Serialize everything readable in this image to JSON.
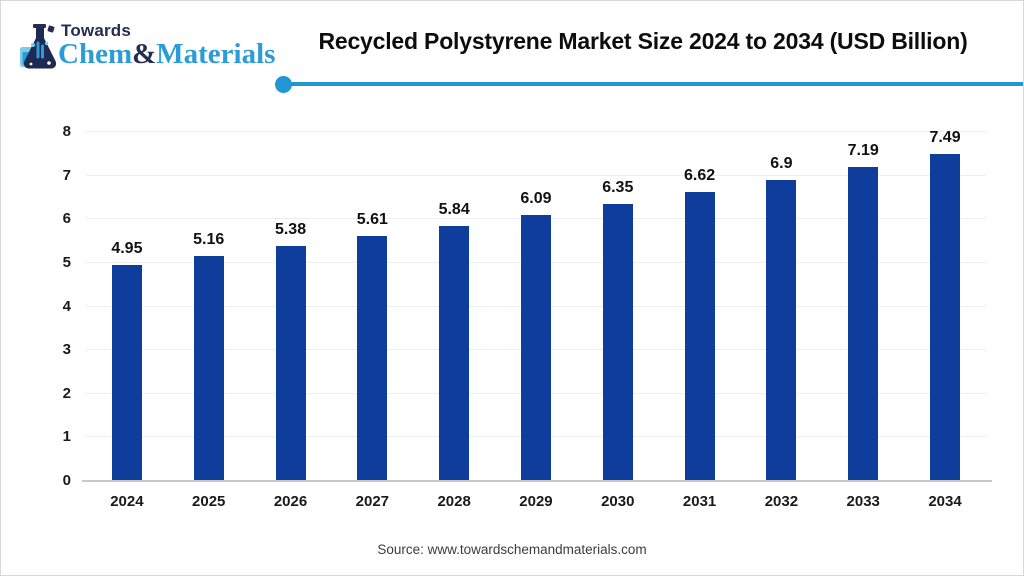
{
  "header": {
    "logo": {
      "icon": "flask-icon",
      "top_text": "Towards",
      "bottom_text_part1": "Chem",
      "bottom_text_amp": "&",
      "bottom_text_part2": "Materials"
    },
    "title": "Recycled Polystyrene Market Size 2024 to 2034 (USD Billion)"
  },
  "chart_data": {
    "type": "bar",
    "title": "Recycled Polystyrene Market Size 2024 to 2034 (USD Billion)",
    "categories": [
      "2024",
      "2025",
      "2026",
      "2027",
      "2028",
      "2029",
      "2030",
      "2031",
      "2032",
      "2033",
      "2034"
    ],
    "values": [
      4.95,
      5.16,
      5.38,
      5.61,
      5.84,
      6.09,
      6.35,
      6.62,
      6.9,
      7.19,
      7.49
    ],
    "value_labels": [
      "4.95",
      "5.16",
      "5.38",
      "5.61",
      "5.84",
      "6.09",
      "6.35",
      "6.62",
      "6.9",
      "7.19",
      "7.49"
    ],
    "xlabel": "",
    "ylabel": "",
    "ylim": [
      0,
      8
    ],
    "y_ticks": [
      0,
      1,
      2,
      3,
      4,
      5,
      6,
      7,
      8
    ],
    "grid": "horizontal",
    "legend": "none",
    "bar_color": "#0e3d9c"
  },
  "footer": {
    "source": "Source: www.towardschemandmaterials.com"
  },
  "colors": {
    "bar": "#0e3d9c",
    "accent_line": "#2196d3",
    "logo_blue": "#2b9cd8",
    "logo_navy": "#252e52",
    "gridline": "#eeeeee",
    "axis_line": "#c8c8c8"
  }
}
